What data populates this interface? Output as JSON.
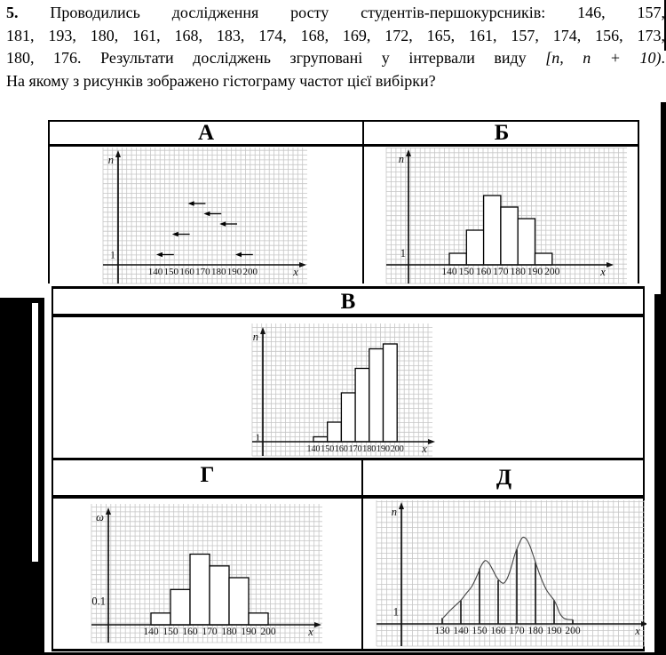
{
  "problem": {
    "number": "5.",
    "line1": "Проводились дослідження росту студентів-першокурсників: 146, 157,",
    "line2": "181, 193, 180, 161, 168, 183, 174, 168, 169, 172, 165, 161, 157, 174, 156, 173,",
    "line3_pre": "180, 176. Результати досліджень згруповані у інтервали виду ",
    "line3_math": "[n, n + 10)",
    "line3_end": ".",
    "line4": "На якому з рисунків зображено гістограму частот цієї вибірки?"
  },
  "options": [
    {
      "label": "А"
    },
    {
      "label": "Б"
    },
    {
      "label": "В"
    },
    {
      "label": "Г"
    },
    {
      "label": "Д"
    }
  ],
  "colors": {
    "ink": "#000000",
    "axis": "#111111",
    "grid": "#c6c6c6",
    "curve": "#444444"
  },
  "chart_data": [
    {
      "id": "a",
      "option": "А",
      "type": "arrow-steps",
      "title": "",
      "xlabel": "x",
      "ylabel": "n",
      "y_marker": "1",
      "y_marker_value": 1,
      "x_step": 10,
      "x_ticks": [
        140,
        150,
        160,
        170,
        180,
        190,
        200
      ],
      "intervals": [
        [
          140,
          150
        ],
        [
          150,
          160
        ],
        [
          160,
          170
        ],
        [
          170,
          180
        ],
        [
          180,
          190
        ],
        [
          190,
          200
        ]
      ],
      "values": [
        1,
        3,
        6,
        5,
        4,
        1
      ]
    },
    {
      "id": "b",
      "option": "Б",
      "type": "bar",
      "title": "",
      "xlabel": "x",
      "ylabel": "n",
      "y_marker": "1",
      "y_marker_value": 1,
      "x_step": 10,
      "x_ticks": [
        140,
        150,
        160,
        170,
        180,
        190,
        200
      ],
      "intervals": [
        [
          140,
          150
        ],
        [
          150,
          160
        ],
        [
          160,
          170
        ],
        [
          170,
          180
        ],
        [
          180,
          190
        ],
        [
          190,
          200
        ]
      ],
      "values": [
        1,
        3,
        6,
        5,
        4,
        1
      ]
    },
    {
      "id": "v",
      "option": "В",
      "type": "bar",
      "title": "",
      "xlabel": "x",
      "ylabel": "n",
      "y_marker": "1",
      "y_marker_value": 1,
      "x_step": 10,
      "x_ticks": [
        140,
        150,
        160,
        170,
        180,
        190,
        200
      ],
      "intervals": [
        [
          140,
          150
        ],
        [
          150,
          160
        ],
        [
          160,
          170
        ],
        [
          170,
          180
        ],
        [
          180,
          190
        ],
        [
          190,
          200
        ]
      ],
      "values": [
        1,
        4,
        10,
        15,
        19,
        20
      ]
    },
    {
      "id": "g",
      "option": "Г",
      "type": "bar",
      "title": "",
      "xlabel": "x",
      "ylabel": "ω",
      "y_marker": "0.1",
      "y_marker_value": 0.1,
      "x_step": 10,
      "x_ticks": [
        140,
        150,
        160,
        170,
        180,
        190,
        200
      ],
      "intervals": [
        [
          140,
          150
        ],
        [
          150,
          160
        ],
        [
          160,
          170
        ],
        [
          170,
          180
        ],
        [
          180,
          190
        ],
        [
          190,
          200
        ]
      ],
      "values": [
        0.05,
        0.15,
        0.3,
        0.25,
        0.2,
        0.05
      ]
    },
    {
      "id": "d",
      "option": "Д",
      "type": "curve",
      "title": "",
      "xlabel": "x",
      "ylabel": "n",
      "y_marker": "1",
      "y_marker_value": 1,
      "x_step": 10,
      "x_ticks": [
        130,
        140,
        150,
        160,
        170,
        180,
        190,
        200
      ],
      "tick_heights": [
        0.5,
        2,
        4.7,
        3.7,
        6.3,
        5.2,
        2,
        0.35
      ],
      "curve_points": [
        [
          130.5,
          0.5
        ],
        [
          134,
          1.1
        ],
        [
          137,
          1.55
        ],
        [
          140,
          2
        ],
        [
          143,
          2.6
        ],
        [
          146,
          3.2
        ],
        [
          149,
          4.2
        ],
        [
          151,
          4.95
        ],
        [
          153,
          5.35
        ],
        [
          155,
          5.15
        ],
        [
          157,
          4.6
        ],
        [
          159,
          4.0
        ],
        [
          161,
          3.6
        ],
        [
          163,
          3.45
        ],
        [
          165,
          3.9
        ],
        [
          167,
          4.8
        ],
        [
          169,
          5.9
        ],
        [
          171,
          6.7
        ],
        [
          173,
          7.3
        ],
        [
          175,
          7.2
        ],
        [
          177,
          6.6
        ],
        [
          179,
          5.7
        ],
        [
          180,
          5.2
        ],
        [
          182,
          4.3
        ],
        [
          184,
          3.5
        ],
        [
          186,
          2.85
        ],
        [
          188,
          2.4
        ],
        [
          190,
          2
        ],
        [
          191.5,
          1.5
        ],
        [
          193,
          0.9
        ],
        [
          195,
          0.5
        ],
        [
          197,
          0.38
        ],
        [
          200,
          0.35
        ]
      ]
    }
  ]
}
